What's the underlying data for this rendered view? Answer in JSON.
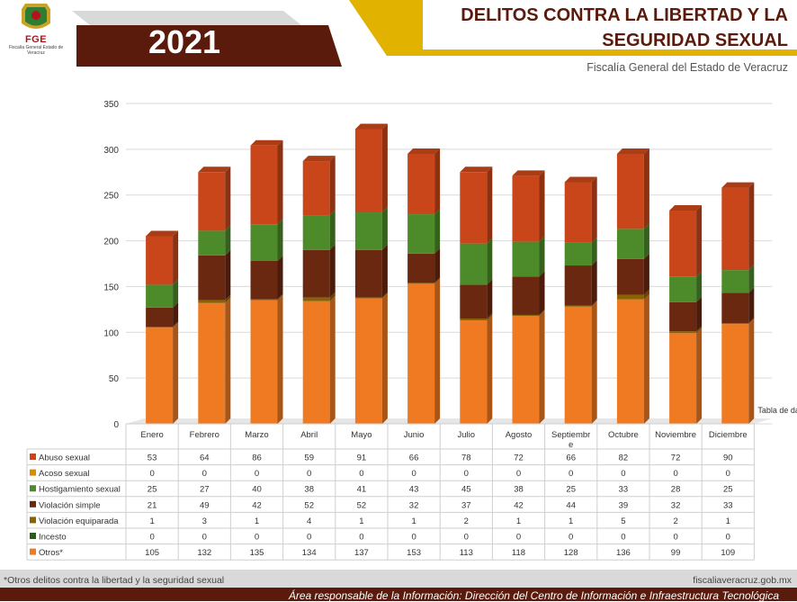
{
  "header": {
    "logo_text": "FGE",
    "logo_subtext": "Fiscalía General Estado de Veracruz",
    "year": "2021",
    "title_line1": "DELITOS CONTRA LA LIBERTAD Y LA",
    "title_line2": "SEGURIDAD SEXUAL",
    "subtitle": "Fiscalía General del Estado de Veracruz"
  },
  "chart_data": {
    "type": "bar",
    "stacked": true,
    "ylim": [
      0,
      350
    ],
    "yticks": [
      0,
      50,
      100,
      150,
      200,
      250,
      300,
      350
    ],
    "categories": [
      "Enero",
      "Febrero",
      "Marzo",
      "Abril",
      "Mayo",
      "Junio",
      "Julio",
      "Agosto",
      "Septiembre",
      "Octubre",
      "Noviembre",
      "Diciembre"
    ],
    "category_labels": [
      [
        "Enero"
      ],
      [
        "Febrero"
      ],
      [
        "Marzo"
      ],
      [
        "Abril"
      ],
      [
        "Mayo"
      ],
      [
        "Junio"
      ],
      [
        "Julio"
      ],
      [
        "Agosto"
      ],
      [
        "Septiembr",
        "e"
      ],
      [
        "Octubre"
      ],
      [
        "Noviembre"
      ],
      [
        "Diciembre"
      ]
    ],
    "stack_order": [
      "Otros*",
      "Incesto",
      "Violación equiparada",
      "Violación simple",
      "Hostigamiento sexual",
      "Acoso sexual",
      "Abuso sexual"
    ],
    "series": [
      {
        "name": "Abuso sexual",
        "color": "#c8461a",
        "values": [
          53,
          64,
          86,
          59,
          91,
          66,
          78,
          72,
          66,
          82,
          72,
          90
        ]
      },
      {
        "name": "Acoso sexual",
        "color": "#d98c00",
        "values": [
          0,
          0,
          0,
          0,
          0,
          0,
          0,
          0,
          0,
          0,
          0,
          0
        ]
      },
      {
        "name": "Hostigamiento sexual",
        "color": "#4c8a2a",
        "values": [
          25,
          27,
          40,
          38,
          41,
          43,
          45,
          38,
          25,
          33,
          28,
          25
        ]
      },
      {
        "name": "Violación simple",
        "color": "#6b2810",
        "values": [
          21,
          49,
          42,
          52,
          52,
          32,
          37,
          42,
          44,
          39,
          32,
          33
        ]
      },
      {
        "name": "Violación equiparada",
        "color": "#8a6200",
        "values": [
          1,
          3,
          1,
          4,
          1,
          1,
          2,
          1,
          1,
          5,
          2,
          1
        ]
      },
      {
        "name": "Incesto",
        "color": "#2e5a1c",
        "values": [
          0,
          0,
          0,
          0,
          0,
          0,
          0,
          0,
          0,
          0,
          0,
          0
        ]
      },
      {
        "name": "Otros*",
        "color": "#f07a22",
        "values": [
          105,
          132,
          135,
          134,
          137,
          153,
          113,
          118,
          128,
          136,
          99,
          109
        ]
      }
    ],
    "table_label": "Tabla de datos"
  },
  "footer": {
    "note": "*Otros delitos contra la libertad y la seguridad sexual",
    "url": "fiscaliaveracruz.gob.mx",
    "responsible": "Área responsable de la Información: Dirección del Centro de Información e Infraestructura Tecnológica"
  }
}
